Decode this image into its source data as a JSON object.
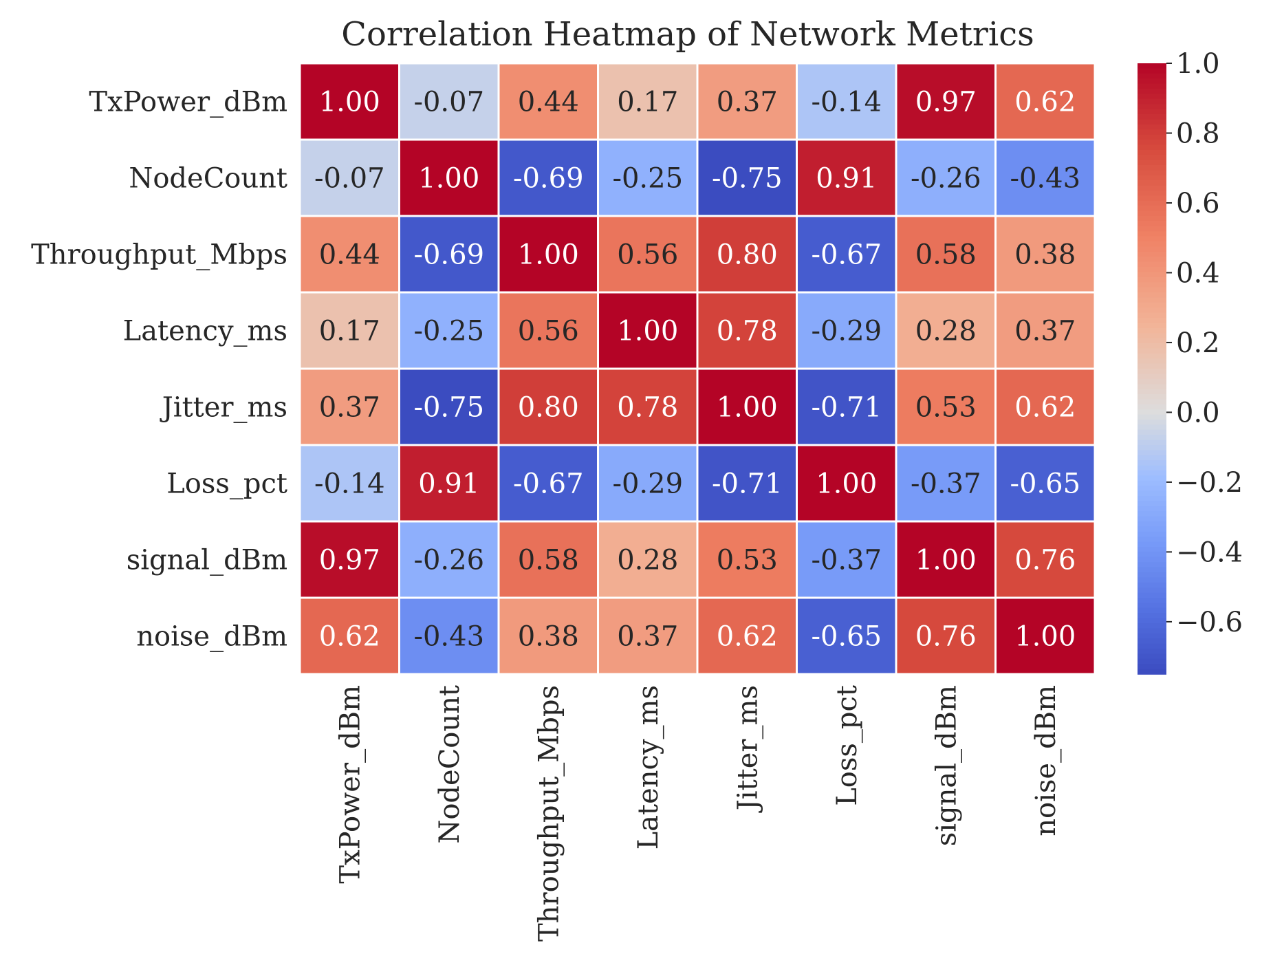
{
  "chart_data": {
    "type": "heatmap",
    "title": "Correlation Heatmap of Network Metrics",
    "row_labels": [
      "TxPower_dBm",
      "NodeCount",
      "Throughput_Mbps",
      "Latency_ms",
      "Jitter_ms",
      "Loss_pct",
      "signal_dBm",
      "noise_dBm"
    ],
    "col_labels": [
      "TxPower_dBm",
      "NodeCount",
      "Throughput_Mbps",
      "Latency_ms",
      "Jitter_ms",
      "Loss_pct",
      "signal_dBm",
      "noise_dBm"
    ],
    "values": [
      [
        1.0,
        -0.07,
        0.44,
        0.17,
        0.37,
        -0.14,
        0.97,
        0.62
      ],
      [
        -0.07,
        1.0,
        -0.69,
        -0.25,
        -0.75,
        0.91,
        -0.26,
        -0.43
      ],
      [
        0.44,
        -0.69,
        1.0,
        0.56,
        0.8,
        -0.67,
        0.58,
        0.38
      ],
      [
        0.17,
        -0.25,
        0.56,
        1.0,
        0.78,
        -0.29,
        0.28,
        0.37
      ],
      [
        0.37,
        -0.75,
        0.8,
        0.78,
        1.0,
        -0.71,
        0.53,
        0.62
      ],
      [
        -0.14,
        0.91,
        -0.67,
        -0.29,
        -0.71,
        1.0,
        -0.37,
        -0.65
      ],
      [
        0.97,
        -0.26,
        0.58,
        0.28,
        0.53,
        -0.37,
        1.0,
        0.76
      ],
      [
        0.62,
        -0.43,
        0.38,
        0.37,
        0.62,
        -0.65,
        0.76,
        1.0
      ]
    ],
    "value_range": [
      -0.75,
      1.0
    ],
    "colormap": "coolwarm",
    "colorbar": {
      "ticks": [
        1.0,
        0.8,
        0.6,
        0.4,
        0.2,
        0.0,
        -0.2,
        -0.4,
        -0.6
      ],
      "tick_labels": [
        "1.0",
        "0.8",
        "0.6",
        "0.4",
        "0.2",
        "0.0",
        "−0.2",
        "−0.4",
        "−0.6"
      ]
    },
    "annotation_format": "0.00",
    "grid": false
  }
}
